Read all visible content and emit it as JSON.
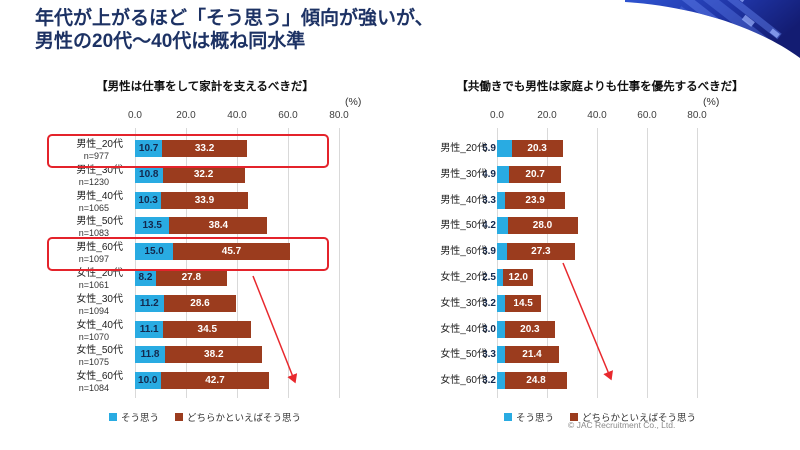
{
  "slide": {
    "title_line1": "年代が上がるほど「そう思う」傾向が強いが、",
    "title_line2": "男性の20代～40代は概ね同水準",
    "credit": "© JAC Recruitment Co., Ltd."
  },
  "legend": {
    "agree_label": "そう思う",
    "somewhat_label": "どちらかといえばそう思う"
  },
  "colors": {
    "title_navy": "#1d3264",
    "agree_blue": "#29abe2",
    "somewhat_brown": "#9b3c1e",
    "highlight_red": "#e4232b",
    "gridline_gray": "#d9d9d9"
  },
  "chart_data": [
    {
      "type": "bar",
      "orientation": "horizontal",
      "stacked": true,
      "title": "【男性は仕事をして家計を支えるべきだ】",
      "unit_label": "(%)",
      "xlim": [
        0,
        80
      ],
      "x_ticks": [
        "0.0",
        "20.0",
        "40.0",
        "60.0",
        "80.0"
      ],
      "grid": true,
      "legend_position": "bottom",
      "categories": [
        "男性_20代",
        "男性_30代",
        "男性_40代",
        "男性_50代",
        "男性_60代",
        "女性_20代",
        "女性_30代",
        "女性_40代",
        "女性_50代",
        "女性_60代"
      ],
      "sample_sizes": [
        "n=977",
        "n=1230",
        "n=1065",
        "n=1083",
        "n=1097",
        "n=1061",
        "n=1094",
        "n=1070",
        "n=1075",
        "n=1084"
      ],
      "series": [
        {
          "name": "そう思う",
          "values": [
            10.7,
            10.8,
            10.3,
            13.5,
            15.0,
            8.2,
            11.2,
            11.1,
            11.8,
            10.0
          ]
        },
        {
          "name": "どちらかといえばそう思う",
          "values": [
            33.2,
            32.2,
            33.9,
            38.4,
            45.7,
            27.8,
            28.6,
            34.5,
            38.2,
            42.7
          ]
        }
      ],
      "highlighted_rows": [
        0,
        4
      ],
      "trend_arrow": true
    },
    {
      "type": "bar",
      "orientation": "horizontal",
      "stacked": true,
      "title": "【共働きでも男性は家庭よりも仕事を優先するべきだ】",
      "unit_label": "(%)",
      "xlim": [
        0,
        80
      ],
      "x_ticks": [
        "0.0",
        "20.0",
        "40.0",
        "60.0",
        "80.0"
      ],
      "grid": true,
      "legend_position": "bottom",
      "categories": [
        "男性_20代",
        "男性_30代",
        "男性_40代",
        "男性_50代",
        "男性_60代",
        "女性_20代",
        "女性_30代",
        "女性_40代",
        "女性_50代",
        "女性_60代"
      ],
      "series": [
        {
          "name": "そう思う",
          "values": [
            5.9,
            4.9,
            3.3,
            4.2,
            3.9,
            2.5,
            3.2,
            3.0,
            3.3,
            3.2
          ]
        },
        {
          "name": "どちらかといえばそう思う",
          "values": [
            20.3,
            20.7,
            23.9,
            28.0,
            27.3,
            12.0,
            14.5,
            20.3,
            21.4,
            24.8
          ]
        }
      ],
      "trend_arrow": true
    }
  ]
}
